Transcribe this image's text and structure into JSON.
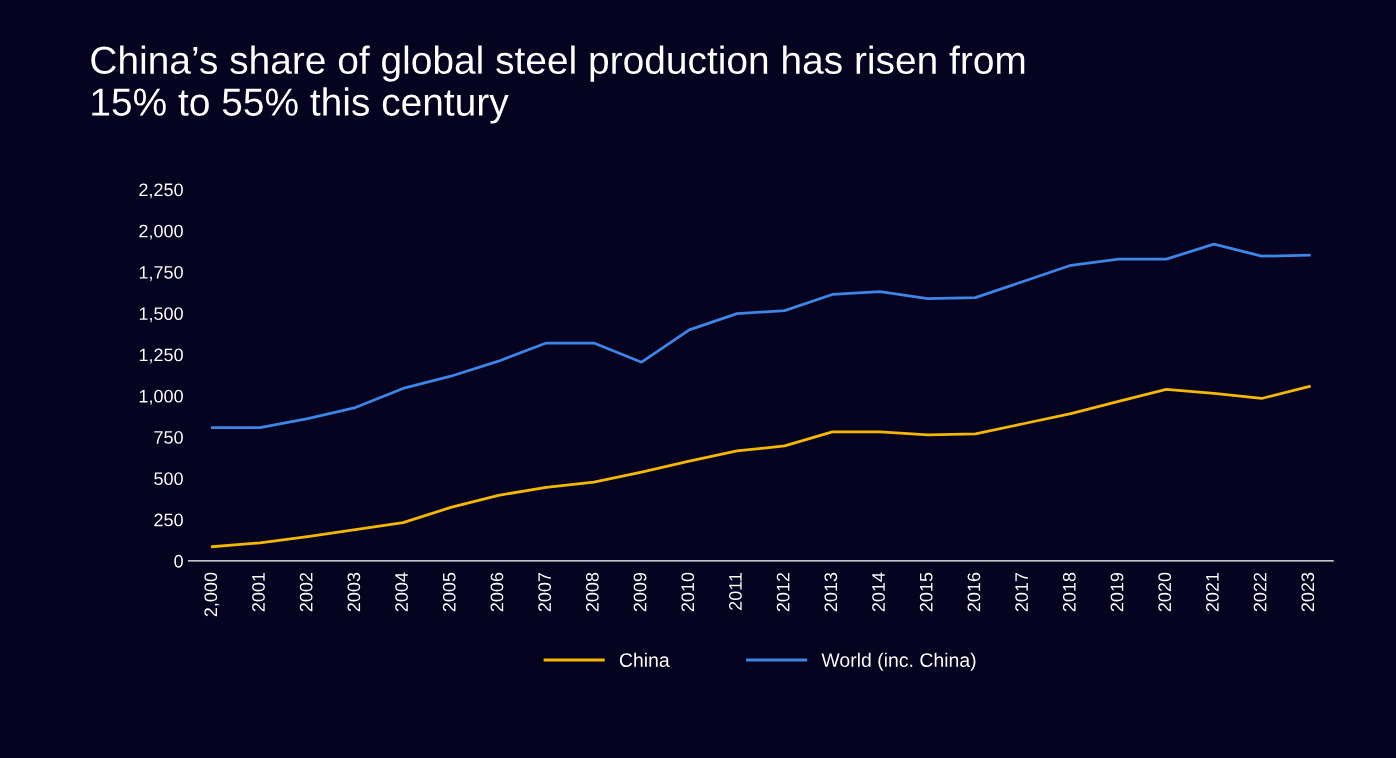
{
  "chart_data": {
    "type": "line",
    "title": "China’s share of global steel production has risen from\n15% to 55% this century",
    "categories": [
      "2,000",
      "2001",
      "2002",
      "2003",
      "2004",
      "2005",
      "2006",
      "2007",
      "2008",
      "2009",
      "2010",
      "2011",
      "2012",
      "2013",
      "2014",
      "2015",
      "2016",
      "2017",
      "2018",
      "2019",
      "2020",
      "2021",
      "2022",
      "2023"
    ],
    "series": [
      {
        "name": "China",
        "color": "#f5b800",
        "values": [
          86,
          110,
          147,
          190,
          232,
          324,
          397,
          446,
          477,
          538,
          605,
          666,
          697,
          782,
          782,
          764,
          770,
          831,
          892,
          966,
          1039,
          1015,
          984,
          1057
        ]
      },
      {
        "name": "World (inc. China)",
        "color": "#3d85e6",
        "values": [
          807,
          807,
          862,
          929,
          1045,
          1119,
          1210,
          1320,
          1320,
          1204,
          1400,
          1498,
          1516,
          1614,
          1632,
          1589,
          1595,
          1693,
          1791,
          1828,
          1828,
          1919,
          1846,
          1852
        ]
      }
    ],
    "ylim": [
      0,
      2250
    ],
    "yticks": [
      0,
      250,
      500,
      750,
      {
        "value": 1000,
        "label": "1,000"
      },
      {
        "value": 1250,
        "label": "1,250"
      },
      {
        "value": 1500,
        "label": "1,500"
      },
      {
        "value": 1750,
        "label": "1,750"
      },
      {
        "value": 2000,
        "label": "2,000"
      },
      {
        "value": 2250,
        "label": "2,250"
      }
    ],
    "grid": false,
    "legend": "bottom",
    "marker": "none",
    "line_style": "solid"
  }
}
